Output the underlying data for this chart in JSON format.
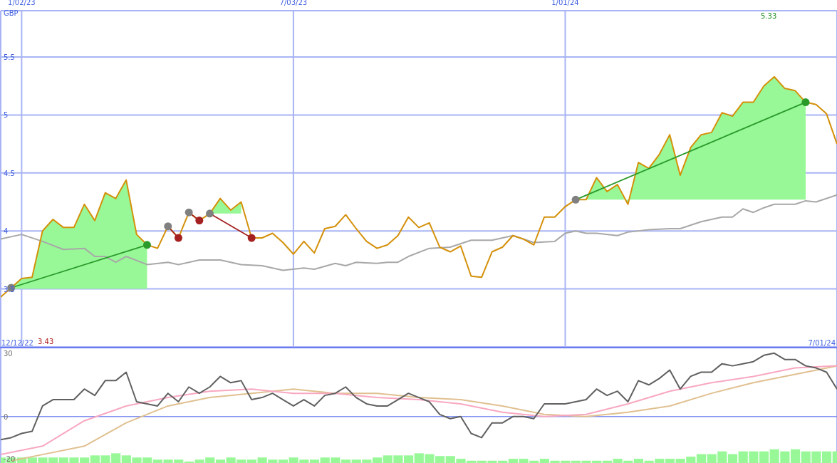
{
  "chart_data": [
    {
      "type": "line",
      "ylabel": "GBP",
      "grid": true,
      "xlim": [
        "2022-12-19",
        "2024-07-01"
      ],
      "ylim": [
        3.0,
        5.9
      ],
      "xticks": [
        {
          "value": "2023-01-02",
          "label": "1/02/23"
        },
        {
          "value": "2023-07-03",
          "label": "7/03/23"
        },
        {
          "value": "2024-01-01",
          "label": "1/01/24"
        }
      ],
      "yticks": [
        3.5,
        4,
        4.5,
        5,
        5.5
      ],
      "annotations": [
        "5.33",
        "3.43"
      ],
      "x": [
        "2022-12-19",
        "2022-12-26",
        "2023-01-02",
        "2023-01-09",
        "2023-01-16",
        "2023-01-23",
        "2023-01-30",
        "2023-02-06",
        "2023-02-13",
        "2023-02-20",
        "2023-02-27",
        "2023-03-06",
        "2023-03-13",
        "2023-03-20",
        "2023-03-27",
        "2023-04-03",
        "2023-04-10",
        "2023-04-17",
        "2023-04-24",
        "2023-05-01",
        "2023-05-08",
        "2023-05-15",
        "2023-05-22",
        "2023-05-29",
        "2023-06-05",
        "2023-06-12",
        "2023-06-19",
        "2023-06-26",
        "2023-07-03",
        "2023-07-10",
        "2023-07-17",
        "2023-07-24",
        "2023-07-31",
        "2023-08-07",
        "2023-08-14",
        "2023-08-21",
        "2023-08-28",
        "2023-09-04",
        "2023-09-11",
        "2023-09-18",
        "2023-09-25",
        "2023-10-02",
        "2023-10-09",
        "2023-10-16",
        "2023-10-23",
        "2023-10-30",
        "2023-11-06",
        "2023-11-13",
        "2023-11-20",
        "2023-11-27",
        "2023-12-04",
        "2023-12-11",
        "2023-12-18",
        "2023-12-25",
        "2024-01-01",
        "2024-01-08",
        "2024-01-15",
        "2024-01-22",
        "2024-01-29",
        "2024-02-05",
        "2024-02-12",
        "2024-02-19",
        "2024-02-26",
        "2024-03-04",
        "2024-03-11",
        "2024-03-18",
        "2024-03-25",
        "2024-04-01",
        "2024-04-08",
        "2024-04-15",
        "2024-04-22",
        "2024-04-29",
        "2024-05-06",
        "2024-05-13",
        "2024-05-20",
        "2024-05-27",
        "2024-06-03",
        "2024-06-10",
        "2024-06-17",
        "2024-06-24",
        "2024-07-01"
      ],
      "series": [
        {
          "color": "#a8a8a8",
          "x": [
            "2022-12-19",
            "2023-01-02",
            "2023-01-16",
            "2023-01-30",
            "2023-02-13",
            "2023-02-20",
            "2023-02-27",
            "2023-03-06",
            "2023-03-13",
            "2023-03-27",
            "2023-04-10",
            "2023-04-17",
            "2023-05-01",
            "2023-05-15",
            "2023-05-29",
            "2023-06-12",
            "2023-06-26",
            "2023-07-10",
            "2023-07-17",
            "2023-07-31",
            "2023-08-07",
            "2023-08-14",
            "2023-08-28",
            "2023-09-04",
            "2023-09-11",
            "2023-09-18",
            "2023-10-02",
            "2023-10-16",
            "2023-10-30",
            "2023-11-13",
            "2023-11-27",
            "2023-12-11",
            "2023-12-25",
            "2024-01-01",
            "2024-01-08",
            "2024-01-15",
            "2024-01-22",
            "2024-02-05",
            "2024-02-12",
            "2024-02-26",
            "2024-03-11",
            "2024-03-18",
            "2024-04-01",
            "2024-04-15",
            "2024-04-22",
            "2024-04-29",
            "2024-05-06",
            "2024-05-13",
            "2024-05-20",
            "2024-06-03",
            "2024-06-10",
            "2024-06-17",
            "2024-07-01"
          ],
          "values": [
            3.93,
            3.97,
            3.91,
            3.84,
            3.85,
            3.78,
            3.78,
            3.73,
            3.78,
            3.71,
            3.73,
            3.71,
            3.75,
            3.75,
            3.71,
            3.7,
            3.66,
            3.68,
            3.67,
            3.72,
            3.7,
            3.73,
            3.72,
            3.73,
            3.73,
            3.78,
            3.85,
            3.86,
            3.92,
            3.92,
            3.96,
            3.9,
            3.91,
            3.98,
            4.0,
            3.98,
            3.98,
            3.96,
            3.99,
            4.01,
            4.02,
            4.02,
            4.08,
            4.12,
            4.12,
            4.19,
            4.16,
            4.2,
            4.23,
            4.23,
            4.26,
            4.25,
            4.31
          ]
        },
        {
          "color": "#d4900a",
          "lower": [
            null,
            3.5,
            3.5,
            3.5,
            3.5,
            3.5,
            3.5,
            3.5,
            3.5,
            3.5,
            3.5,
            3.5,
            3.5,
            3.5,
            3.5,
            null,
            null,
            null,
            null,
            null,
            4.15,
            4.15,
            4.15,
            4.15,
            null,
            null,
            null,
            null,
            null,
            null,
            null,
            null,
            null,
            null,
            null,
            null,
            null,
            null,
            null,
            null,
            null,
            null,
            null,
            null,
            null,
            null,
            null,
            null,
            null,
            null,
            null,
            null,
            null,
            null,
            null,
            4.27,
            4.27,
            4.27,
            4.27,
            4.27,
            4.27,
            4.27,
            4.27,
            4.27,
            4.27,
            4.27,
            4.27,
            4.27,
            4.27,
            4.27,
            4.27,
            4.27,
            4.27,
            4.27,
            4.27,
            4.27,
            4.27,
            4.27,
            null,
            null,
            null
          ],
          "upper": [
            null,
            3.51,
            3.59,
            3.6,
            4.0,
            4.1,
            4.03,
            4.03,
            4.23,
            4.09,
            4.33,
            4.28,
            4.44,
            3.97,
            3.88,
            null,
            null,
            null,
            null,
            null,
            4.15,
            4.28,
            4.18,
            4.25,
            null,
            null,
            null,
            null,
            null,
            null,
            null,
            null,
            null,
            null,
            null,
            null,
            null,
            null,
            null,
            null,
            null,
            null,
            null,
            null,
            null,
            null,
            null,
            null,
            null,
            null,
            null,
            null,
            null,
            null,
            null,
            4.27,
            4.27,
            4.46,
            4.34,
            4.4,
            4.23,
            4.59,
            4.54,
            4.66,
            4.83,
            4.48,
            4.72,
            4.83,
            4.85,
            5.02,
            4.99,
            5.11,
            5.11,
            5.25,
            5.33,
            5.23,
            5.21,
            5.11,
            null,
            null,
            null
          ],
          "values": [
            3.43,
            3.51,
            3.59,
            3.6,
            4.0,
            4.1,
            4.03,
            4.03,
            4.23,
            4.09,
            4.33,
            4.28,
            4.44,
            3.97,
            3.88,
            3.85,
            4.04,
            3.94,
            4.16,
            4.09,
            4.15,
            4.28,
            4.18,
            4.25,
            3.94,
            3.94,
            3.98,
            3.9,
            3.8,
            3.91,
            3.81,
            4.02,
            4.04,
            4.14,
            4.02,
            3.91,
            3.85,
            3.88,
            3.96,
            4.12,
            4.03,
            4.07,
            3.86,
            3.82,
            3.87,
            3.61,
            3.6,
            3.82,
            3.86,
            3.96,
            3.93,
            3.88,
            4.12,
            4.12,
            4.21,
            4.27,
            4.27,
            4.46,
            4.34,
            4.4,
            4.23,
            4.59,
            4.54,
            4.66,
            4.83,
            4.48,
            4.72,
            4.83,
            4.85,
            5.02,
            4.99,
            5.11,
            5.11,
            5.25,
            5.33,
            5.23,
            5.21,
            5.11,
            5.09,
            5.01,
            4.75
          ]
        },
        {
          "color": "#2a9a2a",
          "marker": "circle",
          "x": [
            "2022-12-26",
            "2023-03-27"
          ],
          "values": [
            3.51,
            3.88
          ],
          "colors": [
            "#808080",
            "#2a9a2a"
          ]
        },
        {
          "color": "#a52020",
          "marker": "circle",
          "x": [
            "2023-04-10",
            "2023-04-17"
          ],
          "values": [
            4.04,
            3.94
          ],
          "colors": [
            "#808080",
            "#a52020"
          ]
        },
        {
          "color": "#a52020",
          "marker": "circle",
          "x": [
            "2023-04-24",
            "2023-05-01"
          ],
          "values": [
            4.16,
            4.09
          ],
          "colors": [
            "#808080",
            "#a52020"
          ]
        },
        {
          "color": "#a52020",
          "marker": "circle",
          "x": [
            "2023-05-08",
            "2023-06-05"
          ],
          "values": [
            4.15,
            3.94
          ],
          "colors": [
            "#808080",
            "#a52020"
          ]
        },
        {
          "color": "#2a9a2a",
          "marker": "circle",
          "x": [
            "2024-01-08",
            "2024-06-10"
          ],
          "values": [
            4.27,
            5.11
          ],
          "colors": [
            "#808080",
            "#2a9a2a"
          ]
        }
      ]
    },
    {
      "type": "line",
      "grid": "x",
      "tick_labels": "y",
      "xlim": [
        "2022-12-19",
        "2024-07-01"
      ],
      "ylim": [
        -22,
        32.3
      ],
      "xticks": [
        {
          "value": "2023-01-02",
          "label": null
        },
        {
          "value": "2023-07-03",
          "label": null
        },
        {
          "value": "2024-01-01",
          "label": null
        }
      ],
      "yticks": [
        -20,
        0,
        30
      ],
      "ref_lines": [
        {
          "axis": "y",
          "value": 0,
          "color": "#8090f0"
        }
      ],
      "annotations": [
        "12/12/22",
        "7/01/24"
      ],
      "x": [
        "2022-12-19",
        "2022-12-26",
        "2023-01-02",
        "2023-01-09",
        "2023-01-16",
        "2023-01-23",
        "2023-01-30",
        "2023-02-06",
        "2023-02-13",
        "2023-02-20",
        "2023-02-27",
        "2023-03-06",
        "2023-03-13",
        "2023-03-20",
        "2023-03-27",
        "2023-04-03",
        "2023-04-10",
        "2023-04-17",
        "2023-04-24",
        "2023-05-01",
        "2023-05-08",
        "2023-05-15",
        "2023-05-22",
        "2023-05-29",
        "2023-06-05",
        "2023-06-12",
        "2023-06-19",
        "2023-06-26",
        "2023-07-03",
        "2023-07-10",
        "2023-07-17",
        "2023-07-24",
        "2023-07-31",
        "2023-08-07",
        "2023-08-14",
        "2023-08-21",
        "2023-08-28",
        "2023-09-04",
        "2023-09-11",
        "2023-09-18",
        "2023-09-25",
        "2023-10-02",
        "2023-10-09",
        "2023-10-16",
        "2023-10-23",
        "2023-10-30",
        "2023-11-06",
        "2023-11-13",
        "2023-11-20",
        "2023-11-27",
        "2023-12-04",
        "2023-12-11",
        "2023-12-18",
        "2023-12-25",
        "2024-01-01",
        "2024-01-08",
        "2024-01-15",
        "2024-01-22",
        "2024-01-29",
        "2024-02-05",
        "2024-02-12",
        "2024-02-19",
        "2024-02-26",
        "2024-03-04",
        "2024-03-11",
        "2024-03-18",
        "2024-03-25",
        "2024-04-01",
        "2024-04-08",
        "2024-04-15",
        "2024-04-22",
        "2024-04-29",
        "2024-05-06",
        "2024-05-13",
        "2024-05-20",
        "2024-05-27",
        "2024-06-03",
        "2024-06-10",
        "2024-06-17",
        "2024-06-24",
        "2024-07-01"
      ],
      "series": [
        {
          "type": "bar",
          "color": "#98f898",
          "values": [
            2.6,
            2.6,
            2.6,
            2.6,
            2.6,
            2.6,
            2.6,
            2.6,
            2.6,
            3.6,
            3.6,
            4.6,
            3.6,
            2.6,
            2.6,
            1.6,
            1.6,
            1.6,
            0.7,
            1.6,
            2.6,
            1.6,
            2.6,
            1.6,
            1.6,
            2.6,
            1.6,
            1.6,
            2.6,
            1.6,
            1.6,
            2.6,
            2.6,
            1.6,
            1.6,
            1.6,
            2.6,
            3.6,
            3.6,
            3.6,
            4.6,
            4.2,
            3.3,
            3.3,
            2.0,
            1.1,
            1.1,
            1.1,
            1.1,
            2.0,
            2.0,
            1.1,
            2.0,
            1.1,
            1.1,
            1.1,
            1.1,
            1.1,
            1.1,
            2.0,
            1.1,
            2.0,
            1.1,
            2.0,
            2.0,
            2.0,
            3.0,
            4.2,
            4.2,
            5.5,
            4.2,
            5.5,
            5.5,
            5.5,
            6.5,
            5.5,
            6.5,
            5.5,
            5.5,
            5.5,
            5.5
          ],
          "base": [
            -22,
            -22,
            -22,
            -22,
            -22,
            -22,
            -22,
            -22,
            -22,
            -22,
            -22,
            -22,
            -22,
            -22,
            -22,
            -22,
            -22,
            -22,
            -22,
            -22,
            -22,
            -22,
            -22,
            -22,
            -22,
            -22,
            -22,
            -22,
            -22,
            -22,
            -22,
            -22,
            -22,
            -22,
            -22,
            -22,
            -22,
            -22,
            -22,
            -22,
            -22,
            -22,
            -22,
            -22,
            -22,
            -22,
            -22,
            -22,
            -22,
            -22,
            -22,
            -22,
            -22,
            -22,
            -22,
            -22,
            -22,
            -22,
            -22,
            -22,
            -22,
            -22,
            -22,
            -22,
            -22,
            -22,
            -22,
            -22,
            -22,
            -22,
            -22,
            -22,
            -22,
            -22,
            -22,
            -22,
            -22,
            -22,
            -22,
            -22,
            -22
          ]
        },
        {
          "color": "#e0c090",
          "x": [
            "2022-12-26",
            "2023-01-16",
            "2023-02-13",
            "2023-03-13",
            "2023-04-10",
            "2023-05-08",
            "2023-06-05",
            "2023-07-03",
            "2023-07-31",
            "2023-08-28",
            "2023-09-25",
            "2023-10-23",
            "2023-11-20",
            "2023-12-18",
            "2024-01-15",
            "2024-02-12",
            "2024-03-11",
            "2024-04-08",
            "2024-05-06",
            "2024-06-03",
            "2024-07-01"
          ],
          "values": [
            -21,
            -18,
            -14,
            -3,
            5,
            9,
            11,
            13,
            11,
            11,
            9,
            8,
            5,
            1,
            0,
            2,
            5,
            11,
            16,
            20,
            24
          ]
        },
        {
          "color": "#f8a8c0",
          "x": [
            "2022-12-19",
            "2023-01-16",
            "2023-02-13",
            "2023-03-13",
            "2023-04-10",
            "2023-05-08",
            "2023-06-05",
            "2023-07-03",
            "2023-07-31",
            "2023-08-28",
            "2023-09-25",
            "2023-10-23",
            "2023-11-20",
            "2023-12-18",
            "2024-01-15",
            "2024-02-12",
            "2024-03-11",
            "2024-04-08",
            "2024-05-06",
            "2024-06-03",
            "2024-07-01"
          ],
          "values": [
            -18,
            -14,
            -2,
            5,
            9,
            12,
            13,
            11,
            11,
            9,
            8,
            6,
            2,
            0,
            1,
            6,
            12,
            16,
            19,
            23,
            24
          ]
        },
        {
          "color": "#606060",
          "values": [
            -11,
            -10,
            -8,
            -7,
            5,
            8,
            8,
            8,
            13,
            10,
            17,
            17,
            21,
            7,
            6,
            5,
            11,
            7,
            14,
            11,
            14,
            19,
            16,
            17,
            8,
            9,
            11,
            8,
            5,
            8,
            5,
            10,
            11,
            14,
            9,
            6,
            5,
            5,
            8,
            11,
            9,
            7,
            1,
            -1,
            0,
            -8,
            -10,
            -3,
            -3,
            0,
            0,
            -1,
            6,
            6,
            6,
            7,
            8,
            13,
            10,
            12,
            7,
            17,
            15,
            18,
            22,
            13,
            19,
            21,
            21,
            25,
            24,
            25,
            26,
            29,
            30,
            27,
            27,
            24,
            23,
            21,
            13
          ]
        }
      ]
    }
  ]
}
